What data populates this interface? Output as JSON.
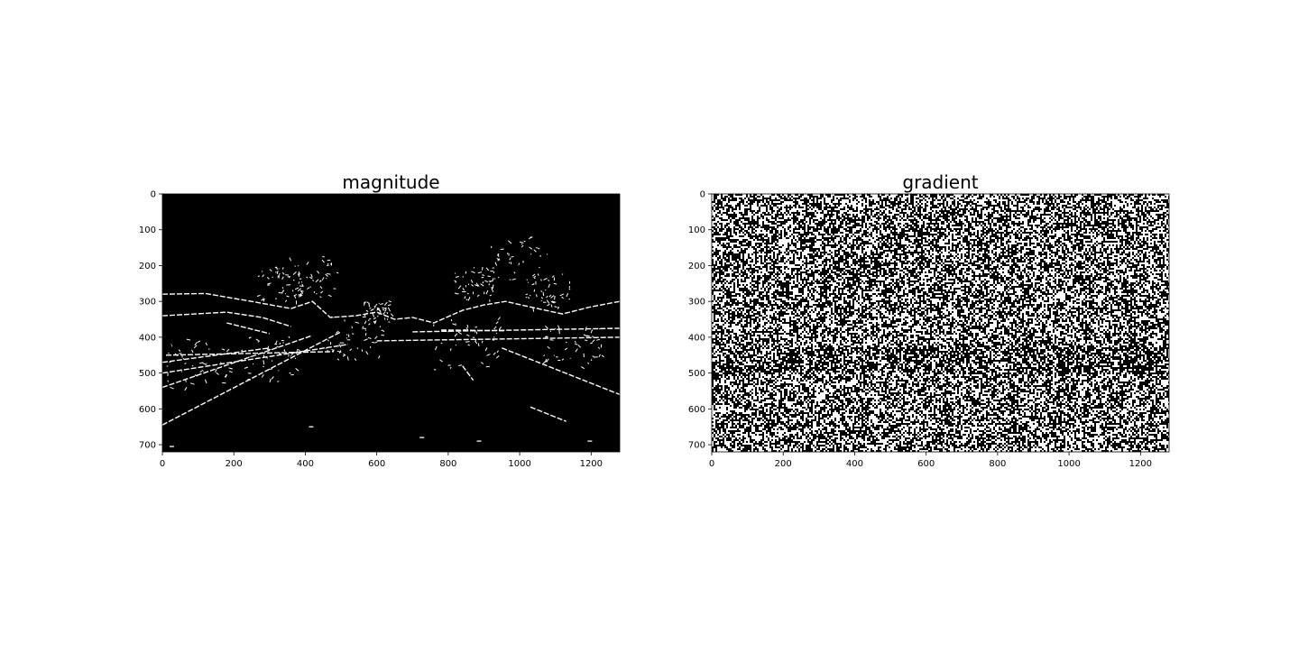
{
  "chart_data": [
    {
      "type": "heatmap",
      "title": "magnitude",
      "colormap": "gray",
      "xlim": [
        0,
        1280
      ],
      "ylim": [
        720,
        0
      ],
      "xticks": [
        0,
        200,
        400,
        600,
        800,
        1000,
        1200
      ],
      "yticks": [
        0,
        100,
        200,
        300,
        400,
        500,
        600,
        700
      ],
      "content": "binary edge map (sparse white edges on black)"
    },
    {
      "type": "heatmap",
      "title": "gradient",
      "colormap": "gray",
      "xlim": [
        0,
        1280
      ],
      "ylim": [
        720,
        0
      ],
      "xticks": [
        0,
        200,
        400,
        600,
        800,
        1000,
        1200
      ],
      "yticks": [
        0,
        100,
        200,
        300,
        400,
        500,
        600,
        700
      ],
      "content": "binary gradient-direction threshold map (dense black/white noise)"
    }
  ]
}
